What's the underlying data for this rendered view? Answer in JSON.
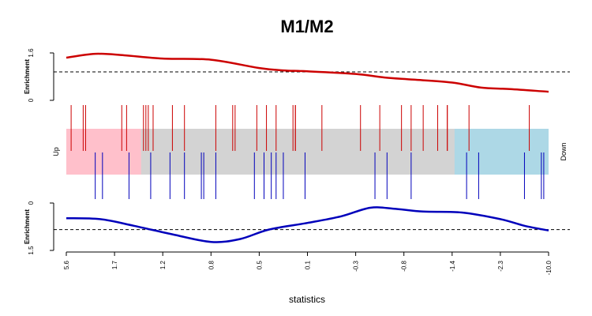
{
  "chart_data": {
    "type": "barcode-enrichment",
    "title": "M1/M2",
    "xlabel": "statistics",
    "x_tick_labels": [
      "5.6",
      "1.7",
      "1.2",
      "0.8",
      "0.5",
      "0.1",
      "-0.3",
      "-0.8",
      "-1.4",
      "-2.3",
      "-10.0"
    ],
    "up_label": "Up",
    "down_label": "Down",
    "colors": {
      "up_series": "#cc0000",
      "down_series": "#0000bb",
      "up_region": "#ffc0cb",
      "middle_region": "#d3d3d3",
      "down_region": "#add8e6"
    },
    "regions": {
      "up_end": 0.155,
      "down_start": 0.805
    },
    "upper_panel": {
      "ylabel": "Enrichment",
      "y_tick_labels": [
        "0",
        "1.6"
      ],
      "ylim": [
        0,
        1.6
      ],
      "reference_line": 0.96,
      "curve": {
        "x": [
          0,
          0.06,
          0.12,
          0.2,
          0.3,
          0.4,
          0.45,
          0.5,
          0.6,
          0.66,
          0.72,
          0.8,
          0.86,
          0.92,
          1.0
        ],
        "y": [
          1.44,
          1.57,
          1.52,
          1.41,
          1.37,
          1.09,
          1.01,
          0.98,
          0.89,
          0.77,
          0.7,
          0.6,
          0.43,
          0.38,
          0.29
        ]
      }
    },
    "lower_panel": {
      "ylabel": "Enrichment",
      "y_tick_labels": [
        "0",
        "1.5"
      ],
      "ylim": [
        0,
        1.5
      ],
      "reference_line": 0.84,
      "curve": {
        "x": [
          0,
          0.07,
          0.14,
          0.22,
          0.3,
          0.36,
          0.42,
          0.5,
          0.57,
          0.63,
          0.68,
          0.74,
          0.82,
          0.9,
          0.95,
          1.0
        ],
        "y": [
          0.48,
          0.51,
          0.72,
          0.99,
          1.23,
          1.14,
          0.84,
          0.63,
          0.42,
          0.15,
          0.18,
          0.27,
          0.3,
          0.51,
          0.72,
          0.87
        ]
      }
    },
    "up_barcode_positions": [
      0.01,
      0.035,
      0.04,
      0.115,
      0.125,
      0.16,
      0.165,
      0.17,
      0.18,
      0.22,
      0.245,
      0.31,
      0.345,
      0.35,
      0.395,
      0.415,
      0.435,
      0.47,
      0.475,
      0.475,
      0.53,
      0.61,
      0.65,
      0.695,
      0.715,
      0.74,
      0.77,
      0.79,
      0.79,
      0.835,
      0.96
    ],
    "down_barcode_positions": [
      0.06,
      0.075,
      0.13,
      0.175,
      0.215,
      0.245,
      0.28,
      0.285,
      0.31,
      0.39,
      0.41,
      0.425,
      0.435,
      0.45,
      0.495,
      0.64,
      0.665,
      0.715,
      0.83,
      0.855,
      0.95,
      0.985,
      0.99
    ]
  }
}
